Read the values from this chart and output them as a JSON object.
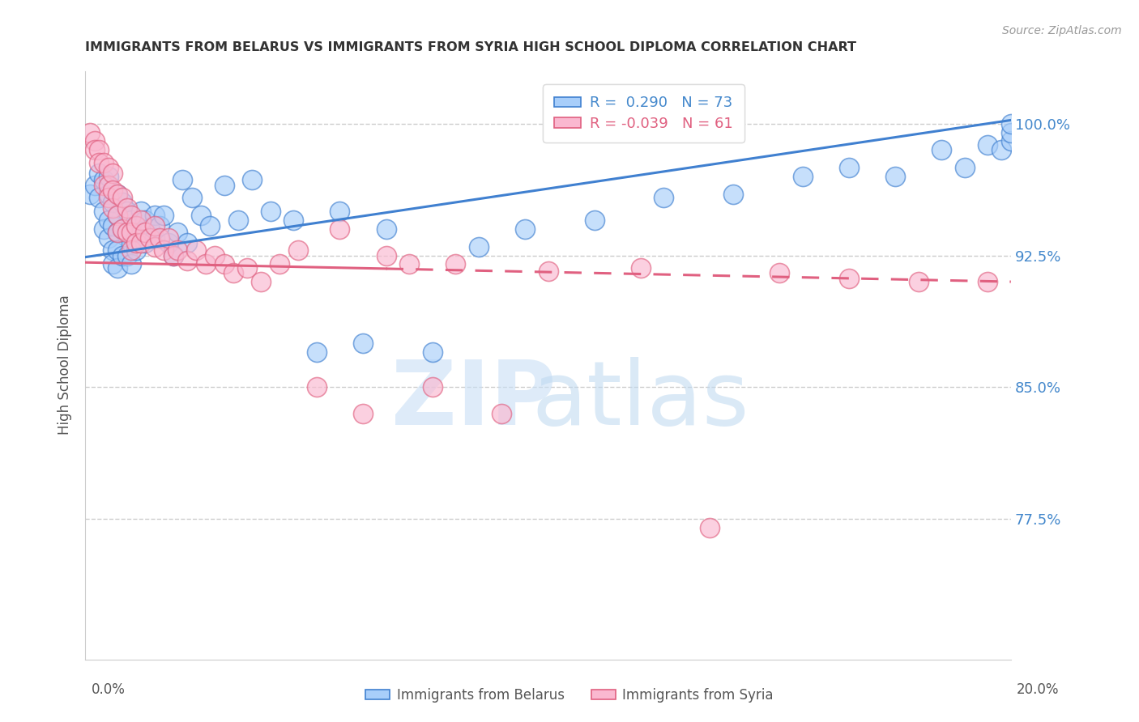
{
  "title": "IMMIGRANTS FROM BELARUS VS IMMIGRANTS FROM SYRIA HIGH SCHOOL DIPLOMA CORRELATION CHART",
  "source": "Source: ZipAtlas.com",
  "ylabel": "High School Diploma",
  "ytick_labels": [
    "77.5%",
    "85.0%",
    "92.5%",
    "100.0%"
  ],
  "ytick_values": [
    0.775,
    0.85,
    0.925,
    1.0
  ],
  "xlim": [
    0.0,
    0.2
  ],
  "ylim": [
    0.695,
    1.03
  ],
  "legend_r1": "R =  0.290   N = 73",
  "legend_r2": "R = -0.039   N = 61",
  "color_belarus": "#A8CEFA",
  "color_syria": "#FAB8D0",
  "color_line_belarus": "#4080D0",
  "color_line_syria": "#E06080",
  "belarus_x": [
    0.001,
    0.002,
    0.003,
    0.003,
    0.004,
    0.004,
    0.004,
    0.005,
    0.005,
    0.005,
    0.005,
    0.006,
    0.006,
    0.006,
    0.006,
    0.007,
    0.007,
    0.007,
    0.007,
    0.007,
    0.008,
    0.008,
    0.008,
    0.009,
    0.009,
    0.009,
    0.01,
    0.01,
    0.01,
    0.011,
    0.011,
    0.012,
    0.012,
    0.013,
    0.013,
    0.014,
    0.015,
    0.015,
    0.016,
    0.017,
    0.018,
    0.019,
    0.02,
    0.021,
    0.022,
    0.023,
    0.025,
    0.027,
    0.03,
    0.033,
    0.036,
    0.04,
    0.045,
    0.05,
    0.055,
    0.06,
    0.065,
    0.075,
    0.085,
    0.095,
    0.11,
    0.125,
    0.14,
    0.155,
    0.165,
    0.175,
    0.185,
    0.19,
    0.195,
    0.198,
    0.2,
    0.2,
    0.2
  ],
  "belarus_y": [
    0.96,
    0.965,
    0.972,
    0.958,
    0.968,
    0.95,
    0.94,
    0.96,
    0.945,
    0.935,
    0.97,
    0.955,
    0.942,
    0.928,
    0.92,
    0.96,
    0.948,
    0.938,
    0.928,
    0.918,
    0.955,
    0.94,
    0.925,
    0.95,
    0.938,
    0.925,
    0.945,
    0.932,
    0.92,
    0.942,
    0.928,
    0.95,
    0.938,
    0.945,
    0.932,
    0.94,
    0.948,
    0.935,
    0.942,
    0.948,
    0.932,
    0.925,
    0.938,
    0.968,
    0.932,
    0.958,
    0.948,
    0.942,
    0.965,
    0.945,
    0.968,
    0.95,
    0.945,
    0.87,
    0.95,
    0.875,
    0.94,
    0.87,
    0.93,
    0.94,
    0.945,
    0.958,
    0.96,
    0.97,
    0.975,
    0.97,
    0.985,
    0.975,
    0.988,
    0.985,
    0.99,
    0.995,
    1.0
  ],
  "syria_x": [
    0.001,
    0.002,
    0.002,
    0.003,
    0.003,
    0.004,
    0.004,
    0.005,
    0.005,
    0.005,
    0.006,
    0.006,
    0.006,
    0.007,
    0.007,
    0.007,
    0.008,
    0.008,
    0.009,
    0.009,
    0.01,
    0.01,
    0.01,
    0.011,
    0.011,
    0.012,
    0.012,
    0.013,
    0.014,
    0.015,
    0.015,
    0.016,
    0.017,
    0.018,
    0.019,
    0.02,
    0.022,
    0.024,
    0.026,
    0.028,
    0.03,
    0.032,
    0.035,
    0.038,
    0.042,
    0.046,
    0.05,
    0.055,
    0.06,
    0.065,
    0.07,
    0.075,
    0.08,
    0.09,
    0.1,
    0.12,
    0.135,
    0.15,
    0.165,
    0.18,
    0.195
  ],
  "syria_y": [
    0.995,
    0.99,
    0.985,
    0.985,
    0.978,
    0.978,
    0.965,
    0.975,
    0.965,
    0.958,
    0.972,
    0.962,
    0.952,
    0.96,
    0.948,
    0.938,
    0.958,
    0.94,
    0.952,
    0.938,
    0.948,
    0.938,
    0.928,
    0.942,
    0.932,
    0.945,
    0.932,
    0.938,
    0.935,
    0.942,
    0.93,
    0.935,
    0.928,
    0.935,
    0.925,
    0.928,
    0.922,
    0.928,
    0.92,
    0.925,
    0.92,
    0.915,
    0.918,
    0.91,
    0.92,
    0.928,
    0.85,
    0.94,
    0.835,
    0.925,
    0.92,
    0.85,
    0.92,
    0.835,
    0.916,
    0.918,
    0.77,
    0.915,
    0.912,
    0.91,
    0.91
  ]
}
